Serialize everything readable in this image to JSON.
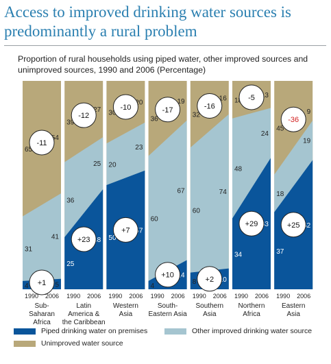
{
  "title": "Access to improved drinking water sources is predominantly a rural problem",
  "subtitle": "Proportion of rural households using piped water, other improved sources and unimproved sources, 1990 and 2006 (Percentage)",
  "colors": {
    "piped": "#0a559b",
    "other": "#a5c5d0",
    "unimproved": "#b8a87a",
    "divider": "#ffffff",
    "negative_badge": "#d21f1f"
  },
  "legend": {
    "piped": "Piped drinking water on premises",
    "other": "Other improved drinking water source",
    "unimproved": "Unimproved water source"
  },
  "chart_data": {
    "type": "area",
    "ylim": [
      0,
      100
    ],
    "years": [
      "1990",
      "2006"
    ],
    "regions": [
      {
        "name": [
          "Sub-",
          "Saharan",
          "Africa"
        ],
        "piped": [
          4,
          5
        ],
        "other": [
          31,
          41
        ],
        "unimproved": [
          65,
          54
        ],
        "piped_change": "+1",
        "unimproved_change": "-11",
        "red": false
      },
      {
        "name": [
          "Latin",
          "America &",
          "the Caribbean"
        ],
        "piped": [
          25,
          48
        ],
        "other": [
          36,
          25
        ],
        "unimproved": [
          39,
          27
        ],
        "piped_change": "+23",
        "unimproved_change": "-12",
        "red": false
      },
      {
        "name": [
          "Western",
          "Asia"
        ],
        "piped": [
          50,
          57
        ],
        "other": [
          20,
          23
        ],
        "unimproved": [
          30,
          20
        ],
        "piped_change": "+7",
        "unimproved_change": "-10",
        "red": false
      },
      {
        "name": [
          "South-",
          "Eastern Asia"
        ],
        "piped": [
          4,
          14
        ],
        "other": [
          60,
          67
        ],
        "unimproved": [
          36,
          19
        ],
        "piped_change": "+10",
        "unimproved_change": "-17",
        "red": false
      },
      {
        "name": [
          "Southern",
          "Asia"
        ],
        "piped": [
          8,
          10
        ],
        "other": [
          60,
          74
        ],
        "unimproved": [
          32,
          16
        ],
        "piped_change": "+2",
        "unimproved_change": "-16",
        "red": false
      },
      {
        "name": [
          "Northern",
          "Africa"
        ],
        "piped": [
          34,
          63
        ],
        "other": [
          48,
          24
        ],
        "unimproved": [
          18,
          13
        ],
        "piped_change": "+29",
        "unimproved_change": "-5",
        "red": false
      },
      {
        "name": [
          "Eastern",
          "Asia"
        ],
        "piped": [
          37,
          62
        ],
        "other": [
          18,
          19
        ],
        "unimproved": [
          45,
          9
        ],
        "piped_change": "+25",
        "unimproved_change": "-36",
        "red": true
      }
    ]
  }
}
